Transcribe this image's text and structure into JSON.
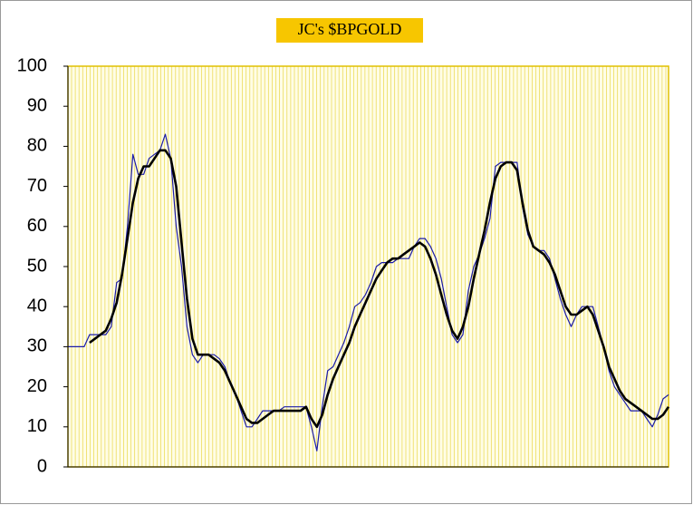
{
  "chart_data": {
    "type": "line",
    "title": "JC's $BPGOLD",
    "ylim": [
      0,
      100
    ],
    "yticks": [
      0,
      10,
      20,
      30,
      40,
      50,
      60,
      70,
      80,
      90,
      100
    ],
    "series": [
      {
        "color": "#1c1ca8",
        "width": 1.2,
        "values": [
          30,
          30,
          30,
          30,
          33,
          33,
          33,
          33,
          35,
          46,
          47,
          60,
          78,
          73,
          73,
          77,
          78,
          79,
          83,
          77,
          60,
          50,
          35,
          28,
          26,
          28,
          28,
          28,
          27,
          25,
          21,
          18,
          14,
          10,
          10,
          12,
          14,
          14,
          14,
          14,
          15,
          15,
          15,
          15,
          15,
          10,
          4,
          15,
          24,
          25,
          28,
          31,
          35,
          40,
          41,
          43,
          46,
          50,
          51,
          51,
          51,
          52,
          52,
          52,
          55,
          57,
          57,
          55,
          52,
          47,
          40,
          33,
          31,
          33,
          44,
          50,
          53,
          57,
          62,
          75,
          76,
          76,
          76,
          76,
          65,
          58,
          55,
          54,
          54,
          52,
          47,
          42,
          38,
          35,
          38,
          40,
          40,
          40,
          35,
          30,
          24,
          20,
          18,
          16,
          14,
          14,
          14,
          12,
          10,
          13,
          17,
          18
        ]
      },
      {
        "color": "#000000",
        "width": 2.6,
        "values": [
          null,
          null,
          null,
          null,
          31,
          32,
          33,
          34,
          37,
          41,
          48,
          57,
          66,
          72,
          75,
          75,
          77,
          79,
          79,
          77,
          70,
          56,
          42,
          32,
          28,
          28,
          28,
          27,
          26,
          24,
          21,
          18,
          15,
          12,
          11,
          11,
          12,
          13,
          14,
          14,
          14,
          14,
          14,
          14,
          15,
          12,
          10,
          13,
          18,
          22,
          25,
          28,
          31,
          35,
          38,
          41,
          44,
          47,
          49,
          51,
          52,
          52,
          53,
          54,
          55,
          56,
          55,
          52,
          48,
          43,
          38,
          34,
          32,
          35,
          40,
          47,
          53,
          59,
          66,
          72,
          75,
          76,
          76,
          74,
          66,
          59,
          55,
          54,
          53,
          51,
          48,
          44,
          40,
          38,
          38,
          39,
          40,
          38,
          34,
          30,
          25,
          22,
          19,
          17,
          16,
          15,
          14,
          13,
          12,
          12,
          13,
          15
        ]
      }
    ]
  }
}
